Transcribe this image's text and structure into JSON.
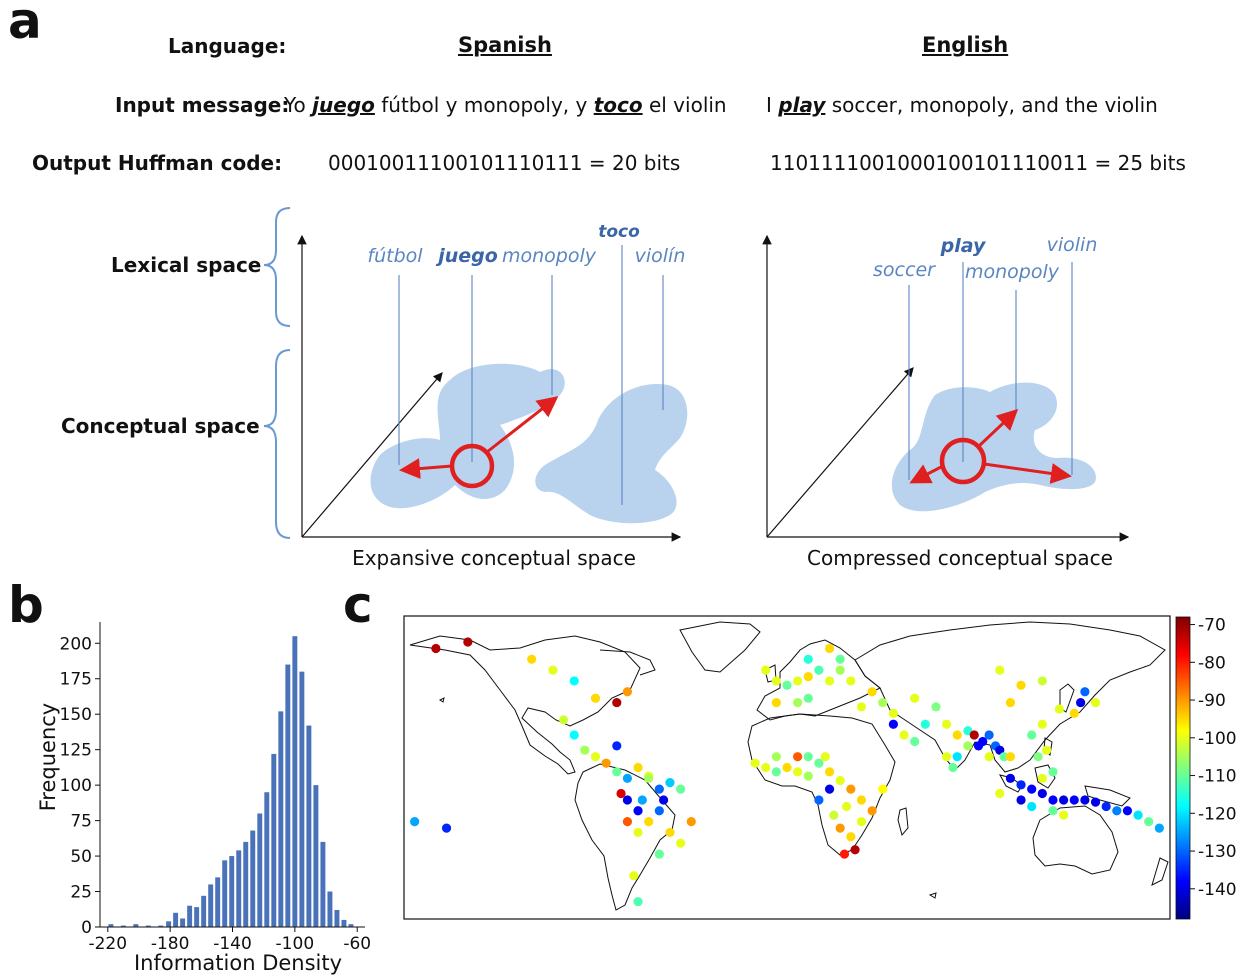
{
  "panel_a": {
    "letter": "a",
    "language_label": "Language:",
    "input_label": "Input message:",
    "output_label": "Output Huffman code:",
    "lexical_label": "Lexical space",
    "conceptual_label": "Conceptual space",
    "spanish": {
      "header": "Spanish",
      "msg_parts": [
        "Yo ",
        "juego",
        " fútbol y monopoly, y ",
        "toco",
        " el violin"
      ],
      "code": "00010011100101110111 = 20 bits",
      "words": [
        "fútbol",
        "juego",
        "monopoly",
        "toco",
        "violín"
      ],
      "axis_caption": "Expansive conceptual space"
    },
    "english": {
      "header": "English",
      "msg_parts": [
        "I ",
        "play",
        " soccer, monopoly, and the violin"
      ],
      "code": "1101111001000100101110011 = 25 bits",
      "words": [
        "soccer",
        "play",
        "monopoly",
        "violin"
      ],
      "axis_caption": "Compressed conceptual space"
    },
    "colors": {
      "blob": "#b9d3ee",
      "word": "#5b86c2",
      "word_strong": "#3a66a8",
      "arrow": "#e02020",
      "brace": "#6a9ad0"
    }
  },
  "panel_b": {
    "letter": "b",
    "chart_data": {
      "type": "bar",
      "xlabel": "Information Density",
      "ylabel": "Frequency",
      "xlim": [
        -225,
        -55
      ],
      "ylim": [
        0,
        215
      ],
      "xticks": [
        -220,
        -180,
        -140,
        -100,
        -60
      ],
      "yticks": [
        0,
        25,
        50,
        75,
        100,
        125,
        150,
        175,
        200
      ],
      "bin_width": 4.4,
      "x": [
        -218,
        -210,
        -202,
        -194,
        -186,
        -181,
        -176.5,
        -172,
        -167.5,
        -163,
        -158.5,
        -154,
        -149.5,
        -145,
        -140.5,
        -136,
        -131.5,
        -127,
        -122.5,
        -118,
        -113.5,
        -109,
        -104.5,
        -100,
        -95.5,
        -91,
        -86.5,
        -82,
        -77.5,
        -73,
        -68.5,
        -64
      ],
      "values": [
        2,
        1,
        2,
        1,
        1,
        4,
        10,
        6,
        15,
        14,
        22,
        30,
        35,
        47,
        50,
        54,
        60,
        68,
        80,
        95,
        122,
        152,
        185,
        205,
        180,
        142,
        100,
        60,
        25,
        12,
        5,
        2
      ],
      "color": "#4a72b8"
    }
  },
  "panel_c": {
    "letter": "c",
    "colorbar": {
      "ticks": [
        "-70",
        "-80",
        "-90",
        "-100",
        "-110",
        "-120",
        "-130",
        "-140"
      ],
      "range": [
        -148,
        -68
      ]
    },
    "points": [
      [
        -165,
        65,
        -72
      ],
      [
        -150,
        68,
        -72
      ],
      [
        -120,
        60,
        -95
      ],
      [
        -110,
        55,
        -100
      ],
      [
        -100,
        50,
        -118
      ],
      [
        -90,
        42,
        -95
      ],
      [
        -80,
        40,
        -72
      ],
      [
        -75,
        45,
        -90
      ],
      [
        -105,
        32,
        -102
      ],
      [
        -100,
        25,
        -118
      ],
      [
        -95,
        18,
        -105
      ],
      [
        -90,
        15,
        -100
      ],
      [
        -85,
        12,
        -90
      ],
      [
        -80,
        8,
        -110
      ],
      [
        -75,
        5,
        -125
      ],
      [
        -70,
        10,
        -95
      ],
      [
        -65,
        6,
        -100
      ],
      [
        -60,
        0,
        -130
      ],
      [
        -75,
        -5,
        -140
      ],
      [
        -70,
        -10,
        -138
      ],
      [
        -65,
        -15,
        -95
      ],
      [
        -60,
        -10,
        -130
      ],
      [
        -55,
        -20,
        -95
      ],
      [
        -50,
        -25,
        -100
      ],
      [
        -45,
        -15,
        -90
      ],
      [
        -75,
        -15,
        -85
      ],
      [
        -70,
        -20,
        -100
      ],
      [
        -60,
        -30,
        -110
      ],
      [
        -72,
        -40,
        -100
      ],
      [
        -70,
        -52,
        -112
      ],
      [
        -65,
        5,
        -105
      ],
      [
        -50,
        0,
        -110
      ],
      [
        -78,
        -2,
        -75
      ],
      [
        -68,
        -5,
        -125
      ],
      [
        -58,
        -5,
        -140
      ],
      [
        -55,
        3,
        -122
      ],
      [
        -80,
        20,
        -135
      ],
      [
        -175,
        -15,
        -125
      ],
      [
        -160,
        -18,
        -135
      ],
      [
        -15,
        12,
        -100
      ],
      [
        -10,
        10,
        -100
      ],
      [
        -5,
        8,
        -110
      ],
      [
        0,
        10,
        -95
      ],
      [
        5,
        8,
        -100
      ],
      [
        10,
        6,
        -105
      ],
      [
        15,
        12,
        -110
      ],
      [
        20,
        8,
        -95
      ],
      [
        25,
        4,
        -100
      ],
      [
        30,
        0,
        -90
      ],
      [
        35,
        -5,
        -95
      ],
      [
        28,
        -8,
        -100
      ],
      [
        22,
        -12,
        -102
      ],
      [
        25,
        -18,
        -90
      ],
      [
        30,
        -22,
        -95
      ],
      [
        32,
        -28,
        -72
      ],
      [
        27,
        -30,
        -80
      ],
      [
        35,
        -15,
        -100
      ],
      [
        40,
        -10,
        -90
      ],
      [
        45,
        0,
        -98
      ],
      [
        20,
        0,
        -140
      ],
      [
        15,
        -5,
        -130
      ],
      [
        18,
        15,
        -100
      ],
      [
        5,
        15,
        -85
      ],
      [
        -5,
        15,
        -105
      ],
      [
        10,
        15,
        -110
      ],
      [
        -5,
        50,
        -100
      ],
      [
        0,
        48,
        -110
      ],
      [
        5,
        50,
        -100
      ],
      [
        10,
        52,
        -95
      ],
      [
        15,
        55,
        -112
      ],
      [
        20,
        50,
        -100
      ],
      [
        25,
        55,
        -105
      ],
      [
        30,
        50,
        -100
      ],
      [
        40,
        45,
        -95
      ],
      [
        45,
        40,
        -105
      ],
      [
        50,
        35,
        -100
      ],
      [
        35,
        38,
        -100
      ],
      [
        25,
        60,
        -110
      ],
      [
        10,
        60,
        -115
      ],
      [
        20,
        65,
        -95
      ],
      [
        -10,
        55,
        -100
      ],
      [
        5,
        40,
        -105
      ],
      [
        -5,
        40,
        -95
      ],
      [
        10,
        42,
        -110
      ],
      [
        60,
        42,
        -100
      ],
      [
        70,
        38,
        -108
      ],
      [
        65,
        30,
        -115
      ],
      [
        55,
        25,
        -100
      ],
      [
        50,
        30,
        -138
      ],
      [
        60,
        22,
        -110
      ],
      [
        75,
        30,
        -100
      ],
      [
        80,
        25,
        -95
      ],
      [
        85,
        27,
        -115
      ],
      [
        88,
        25,
        -72
      ],
      [
        92,
        22,
        -138
      ],
      [
        95,
        25,
        -130
      ],
      [
        98,
        20,
        -130
      ],
      [
        100,
        18,
        -140
      ],
      [
        102,
        15,
        -110
      ],
      [
        105,
        15,
        -95
      ],
      [
        95,
        15,
        -100
      ],
      [
        90,
        20,
        -138
      ],
      [
        85,
        20,
        -105
      ],
      [
        80,
        15,
        -120
      ],
      [
        78,
        10,
        -110
      ],
      [
        75,
        15,
        -100
      ],
      [
        105,
        5,
        -140
      ],
      [
        110,
        2,
        -135
      ],
      [
        115,
        0,
        -138
      ],
      [
        120,
        -2,
        -140
      ],
      [
        125,
        -5,
        -138
      ],
      [
        130,
        -5,
        -140
      ],
      [
        135,
        -5,
        -138
      ],
      [
        140,
        -5,
        -140
      ],
      [
        145,
        -6,
        -140
      ],
      [
        150,
        -8,
        -135
      ],
      [
        155,
        -10,
        -128
      ],
      [
        160,
        -10,
        -138
      ],
      [
        165,
        -12,
        -120
      ],
      [
        170,
        -15,
        -110
      ],
      [
        175,
        -18,
        -125
      ],
      [
        120,
        5,
        -100
      ],
      [
        125,
        8,
        -110
      ],
      [
        118,
        15,
        -108
      ],
      [
        122,
        18,
        -100
      ],
      [
        115,
        -8,
        -120
      ],
      [
        110,
        -5,
        -140
      ],
      [
        100,
        -2,
        -100
      ],
      [
        125,
        -10,
        -110
      ],
      [
        130,
        -12,
        -100
      ],
      [
        140,
        45,
        -130
      ],
      [
        138,
        40,
        -140
      ],
      [
        135,
        35,
        -95
      ],
      [
        128,
        37,
        -100
      ],
      [
        145,
        40,
        -100
      ],
      [
        120,
        50,
        -102
      ],
      [
        110,
        48,
        -95
      ],
      [
        100,
        55,
        -100
      ],
      [
        105,
        40,
        -95
      ],
      [
        120,
        30,
        -100
      ],
      [
        115,
        25,
        -110
      ]
    ]
  }
}
